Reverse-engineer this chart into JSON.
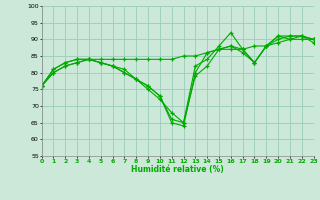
{
  "xlabel": "Humidité relative (%)",
  "bg_color": "#cce8d8",
  "grid_color": "#99ccbb",
  "line_color": "#00aa00",
  "ylim": [
    55,
    100
  ],
  "xlim": [
    0,
    23
  ],
  "yticks": [
    55,
    60,
    65,
    70,
    75,
    80,
    85,
    90,
    95,
    100
  ],
  "xticks": [
    0,
    1,
    2,
    3,
    4,
    5,
    6,
    7,
    8,
    9,
    10,
    11,
    12,
    13,
    14,
    15,
    16,
    17,
    18,
    19,
    20,
    21,
    22,
    23
  ],
  "series": [
    [
      76,
      81,
      83,
      84,
      84,
      84,
      84,
      84,
      84,
      84,
      84,
      84,
      85,
      85,
      86,
      87,
      87,
      87,
      88,
      88,
      89,
      90,
      90,
      90
    ],
    [
      76,
      80,
      82,
      83,
      84,
      83,
      82,
      80,
      78,
      76,
      73,
      66,
      65,
      79,
      82,
      87,
      88,
      87,
      83,
      88,
      91,
      91,
      91,
      90
    ],
    [
      76,
      80,
      82,
      83,
      84,
      83,
      82,
      80,
      78,
      76,
      73,
      65,
      64,
      80,
      86,
      87,
      88,
      86,
      83,
      88,
      91,
      90,
      91,
      89
    ],
    [
      76,
      81,
      83,
      84,
      84,
      83,
      82,
      81,
      78,
      75,
      72,
      68,
      65,
      82,
      84,
      88,
      92,
      87,
      83,
      88,
      90,
      91,
      91,
      90
    ]
  ]
}
